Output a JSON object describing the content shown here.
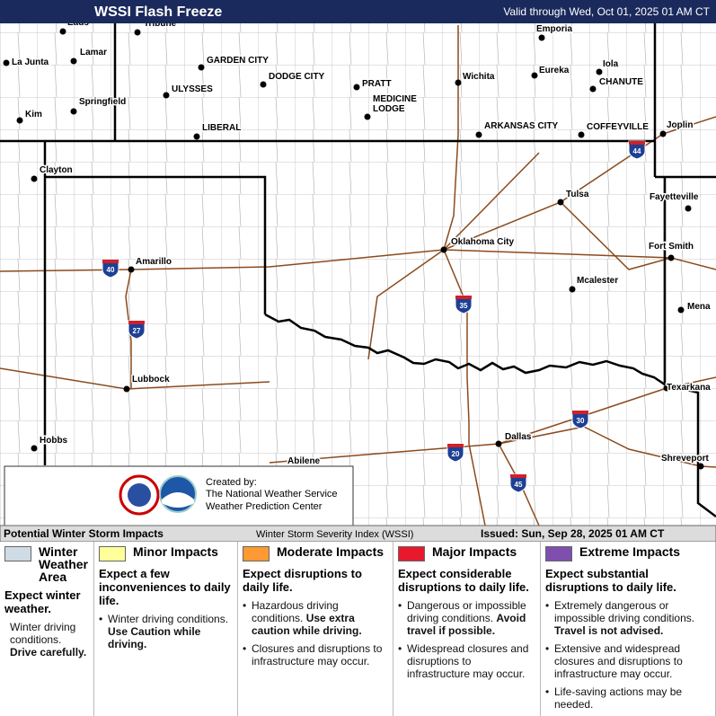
{
  "header": {
    "title": "WSSI Flash Freeze",
    "valid": "Valid through Wed, Oct 01, 2025 01 AM CT"
  },
  "map": {
    "cities": [
      {
        "lines": [
          "Eads"
        ]
      },
      {
        "lines": [
          "Tribune"
        ]
      },
      {
        "lines": [
          "Emporia"
        ]
      },
      {
        "lines": [
          "La Junta"
        ]
      },
      {
        "lines": [
          "Lamar"
        ]
      },
      {
        "lines": [
          "GARDEN CITY"
        ]
      },
      {
        "lines": [
          "Iola"
        ]
      },
      {
        "lines": [
          "DODGE CITY"
        ]
      },
      {
        "lines": [
          "Eureka"
        ]
      },
      {
        "lines": [
          "Wichita"
        ]
      },
      {
        "lines": [
          "PRATT"
        ]
      },
      {
        "lines": [
          "CHANUTE"
        ]
      },
      {
        "lines": [
          "ULYSSES"
        ]
      },
      {
        "lines": [
          "MEDICINE",
          "LODGE"
        ]
      },
      {
        "lines": [
          "Springfield"
        ]
      },
      {
        "lines": [
          "Kim"
        ]
      },
      {
        "lines": [
          "LIBERAL"
        ]
      },
      {
        "lines": [
          "ARKANSAS CITY"
        ]
      },
      {
        "lines": [
          "COFFEYVILLE"
        ]
      },
      {
        "lines": [
          "Joplin"
        ]
      },
      {
        "lines": [
          "Clayton"
        ]
      },
      {
        "lines": [
          "Tulsa"
        ]
      },
      {
        "lines": [
          "Fayetteville"
        ]
      },
      {
        "lines": [
          "Oklahoma City"
        ]
      },
      {
        "lines": [
          "Fort Smith"
        ]
      },
      {
        "lines": [
          "Amarillo"
        ]
      },
      {
        "lines": [
          "Mcalester"
        ]
      },
      {
        "lines": [
          "Mena"
        ]
      },
      {
        "lines": [
          "Lubbock"
        ]
      },
      {
        "lines": [
          "Texarkana"
        ]
      },
      {
        "lines": [
          "Hobbs"
        ]
      },
      {
        "lines": [
          "Dallas"
        ]
      },
      {
        "lines": [
          "Abilene"
        ]
      },
      {
        "lines": [
          "Shreveport"
        ]
      }
    ],
    "interstates": [
      "40",
      "27",
      "35",
      "44",
      "20",
      "30",
      "45"
    ]
  },
  "credit": {
    "lines": [
      "Created by:",
      "The National Weather Service",
      "Weather Prediction Center"
    ]
  },
  "legend": {
    "title": "Potential Winter Storm Impacts",
    "index": "Winter Storm Severity Index (WSSI)",
    "issued": "Issued: Sun, Sep 28, 2025 01 AM CT",
    "columns": [
      {
        "name": "Winter Weather Area",
        "color": "#cfdbe5",
        "headline": "Expect winter weather.",
        "note": {
          "text": "Winter driving conditions.",
          "bold": "Drive carefully."
        }
      },
      {
        "name": "Minor Impacts",
        "color": "#ffff99",
        "headline": "Expect a few inconveniences to daily life.",
        "items": [
          {
            "text": "Winter driving conditions.",
            "bold": "Use Caution while driving."
          }
        ]
      },
      {
        "name": "Moderate Impacts",
        "color": "#ff9933",
        "headline": "Expect disruptions to daily life.",
        "items": [
          {
            "text": "Hazardous driving conditions.",
            "bold": "Use extra caution while driving."
          },
          {
            "text": "Closures and disruptions to infrastructure may occur."
          }
        ]
      },
      {
        "name": "Major Impacts",
        "color": "#e8192c",
        "headline": "Expect considerable disruptions to daily life.",
        "items": [
          {
            "text": "Dangerous or impossible driving conditions.",
            "bold": "Avoid travel if possible."
          },
          {
            "text": "Widespread closures and disruptions to infrastructure may occur."
          }
        ]
      },
      {
        "name": "Extreme Impacts",
        "color": "#7f4fb0",
        "headline": "Expect substantial disruptions to daily life.",
        "items": [
          {
            "text": "Extremely dangerous or impossible driving conditions.",
            "bold": "Travel is not advised."
          },
          {
            "text": "Extensive and widespread closures and disruptions to infrastructure may occur."
          },
          {
            "text": "Life-saving actions may be needed."
          }
        ]
      }
    ]
  }
}
